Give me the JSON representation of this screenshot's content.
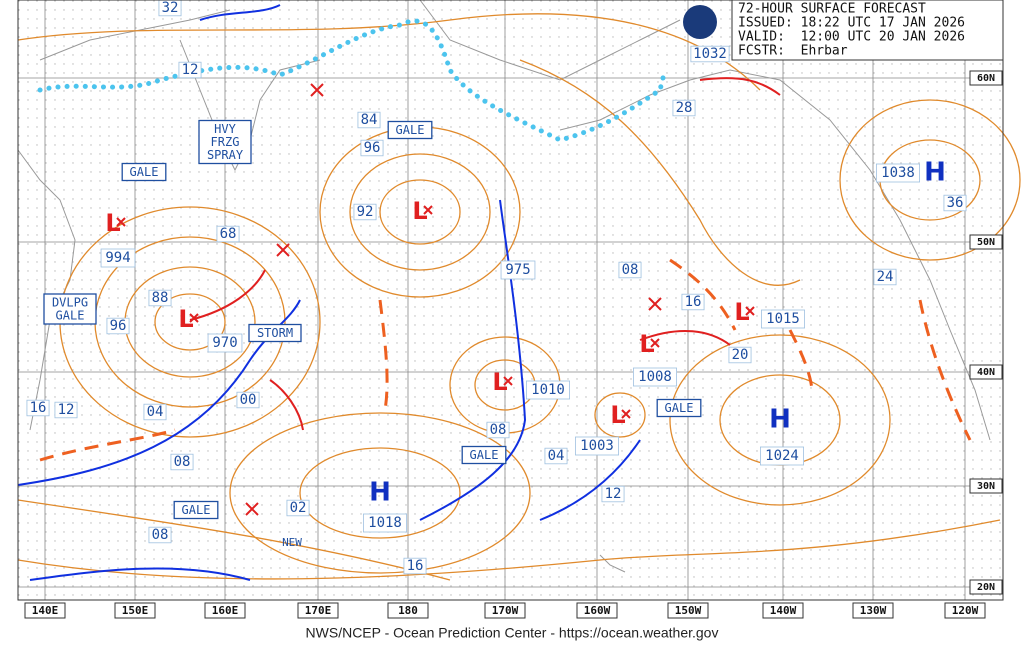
{
  "header": {
    "lines": [
      "72-HOUR SURFACE FORECAST",
      "ISSUED: 18:22 UTC 17 JAN 2026",
      "VALID:  12:00 UTC 20 JAN 2026",
      "FCSTR:  Ehrbar"
    ]
  },
  "footer": "NWS/NCEP - Ocean Prediction Center - https://ocean.weather.gov",
  "longitudes": [
    "140E",
    "150E",
    "160E",
    "170E",
    "180",
    "170W",
    "160W",
    "150W",
    "140W",
    "130W",
    "120W"
  ],
  "latitudes": [
    "60N",
    "50N",
    "40N",
    "30N",
    "20N"
  ],
  "centers": [
    {
      "kind": "L",
      "pressure": "994"
    },
    {
      "kind": "L",
      "pressure": "970"
    },
    {
      "kind": "L",
      "pressure": "975"
    },
    {
      "kind": "L",
      "pressure": "1010"
    },
    {
      "kind": "L",
      "pressure": "1008"
    },
    {
      "kind": "L",
      "pressure": "1003"
    },
    {
      "kind": "L",
      "pressure": "1015"
    },
    {
      "kind": "H",
      "pressure": "1024"
    },
    {
      "kind": "H",
      "pressure": "1018"
    },
    {
      "kind": "H",
      "pressure": "1038"
    }
  ],
  "pressure_labels": [
    "1032",
    "32",
    "12",
    "84",
    "96",
    "92",
    "68",
    "88",
    "96",
    "08",
    "16",
    "20",
    "04",
    "00",
    "16",
    "12",
    "08",
    "08",
    "04",
    "12",
    "02",
    "08",
    "16",
    "28",
    "36",
    "24"
  ],
  "warnings": [
    {
      "lines": [
        "GALE"
      ]
    },
    {
      "lines": [
        "HVY",
        "FRZG",
        "SPRAY"
      ]
    },
    {
      "lines": [
        "GALE"
      ]
    },
    {
      "lines": [
        "DVLPG",
        "GALE"
      ]
    },
    {
      "lines": [
        "STORM"
      ]
    },
    {
      "lines": [
        "GALE"
      ]
    },
    {
      "lines": [
        "GALE"
      ]
    },
    {
      "lines": [
        "GALE"
      ]
    }
  ],
  "notes": [
    "NEW"
  ]
}
